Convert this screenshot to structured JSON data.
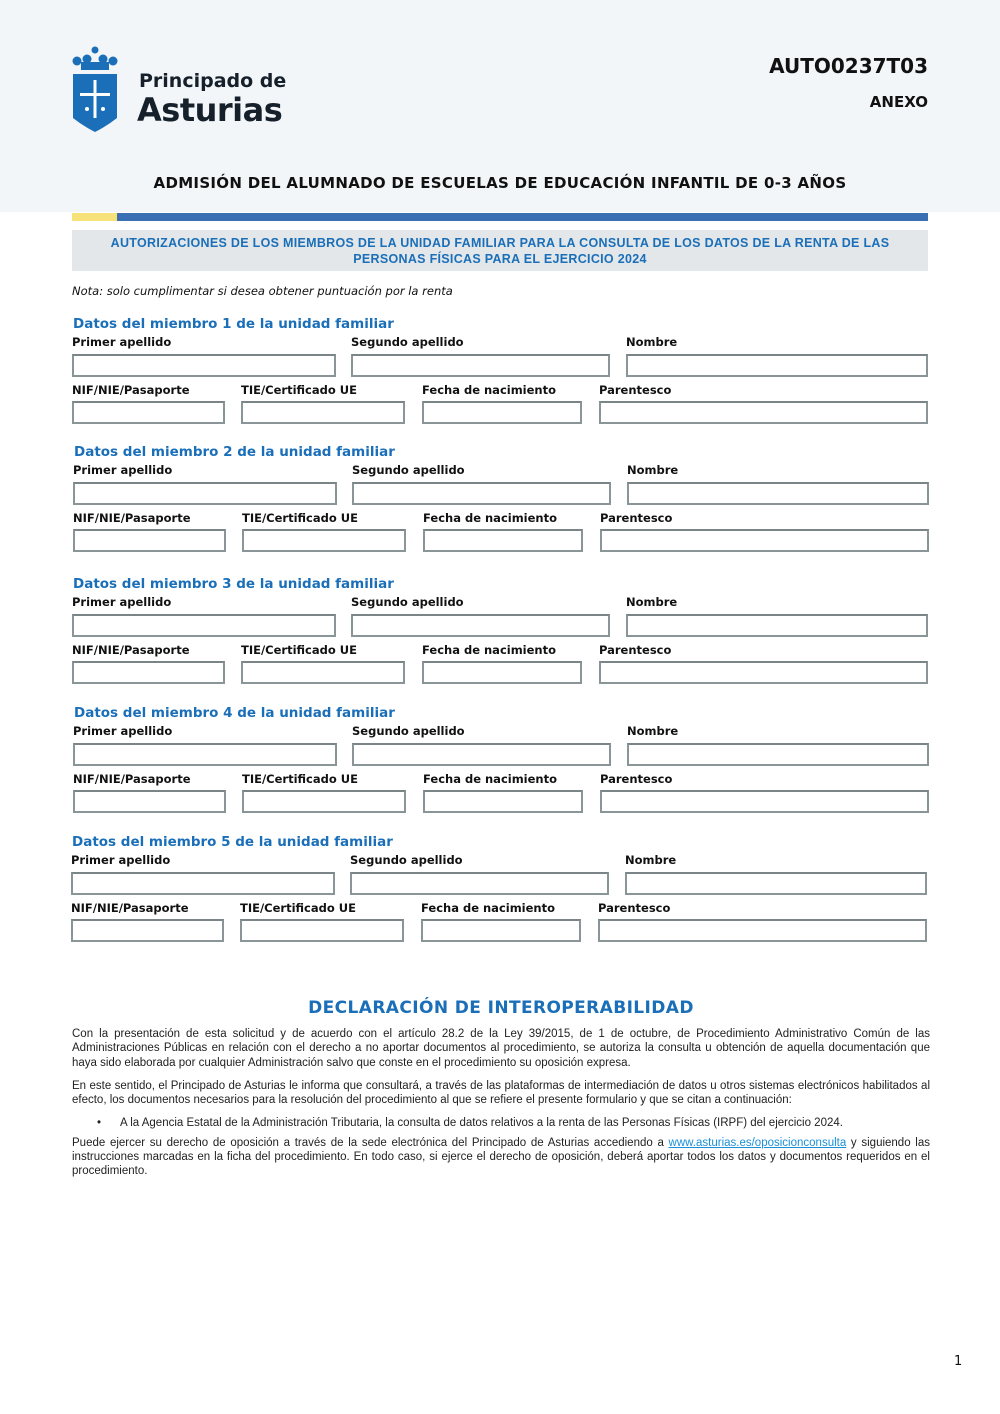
{
  "header": {
    "brand_line1": "Principado de",
    "brand_line2": "Asturias",
    "code": "AUTO0237T03",
    "annex": "ANEXO",
    "title": "ADMISIÓN DEL ALUMNADO DE ESCUELAS DE EDUCACIÓN INFANTIL DE 0-3 AÑOS",
    "colors": {
      "blue": "#1a6fb8",
      "bar": "#3a70b3",
      "yellow": "#f7e27a"
    }
  },
  "section": {
    "title_line1": "AUTORIZACIONES DE LOS MIEMBROS DE LA UNIDAD FAMILIAR PARA LA CONSULTA DE LOS DATOS DE LA RENTA DE LAS",
    "title_line2": "PERSONAS FÍSICAS PARA EL EJERCICIO 2024",
    "note": "Nota: solo cumplimentar si desea obtener puntuación por la renta"
  },
  "fields": {
    "primer_apellido": "Primer apellido",
    "segundo_apellido": "Segundo apellido",
    "nombre": "Nombre",
    "nif": "NIF/NIE/Pasaporte",
    "tie": "TIE/Certificado UE",
    "fecha": "Fecha de nacimiento",
    "parentesco": "Parentesco"
  },
  "members": [
    {
      "title": "Datos del miembro 1 de la unidad familiar",
      "primer_apellido": "",
      "segundo_apellido": "",
      "nombre": "",
      "nif": "",
      "tie": "",
      "fecha": "",
      "parentesco": ""
    },
    {
      "title": "Datos del miembro 2 de la unidad familiar",
      "primer_apellido": "",
      "segundo_apellido": "",
      "nombre": "",
      "nif": "",
      "tie": "",
      "fecha": "",
      "parentesco": ""
    },
    {
      "title": "Datos del miembro 3 de la unidad familiar",
      "primer_apellido": "",
      "segundo_apellido": "",
      "nombre": "",
      "nif": "",
      "tie": "",
      "fecha": "",
      "parentesco": ""
    },
    {
      "title": "Datos del miembro 4 de la unidad familiar",
      "primer_apellido": "",
      "segundo_apellido": "",
      "nombre": "",
      "nif": "",
      "tie": "",
      "fecha": "",
      "parentesco": ""
    },
    {
      "title": "Datos del miembro 5 de la unidad familiar",
      "primer_apellido": "",
      "segundo_apellido": "",
      "nombre": "",
      "nif": "",
      "tie": "",
      "fecha": "",
      "parentesco": ""
    }
  ],
  "declaration": {
    "title": "DECLARACIÓN DE INTEROPERABILIDAD",
    "p1": "Con la presentación de esta solicitud y de acuerdo con el artículo 28.2 de la Ley 39/2015, de 1 de octubre, de Procedimiento Administrativo Común de las Administraciones Públicas en relación con el derecho a no aportar documentos al procedimiento, se autoriza la consulta u obtención de aquella documentación que haya sido elaborada por cualquier Administración salvo que conste en el procedimiento su oposición expresa.",
    "p2": "En este sentido, el Principado de Asturias le informa que consultará, a través de las plataformas de intermediación de datos u otros sistemas electrónicos habilitados al efecto, los documentos necesarios para la resolución del procedimiento al que se refiere el presente formulario y que se citan a continuación:",
    "bullet": "A la Agencia Estatal de la Administración Tributaria, la consulta de datos relativos a la renta de las Personas Físicas (IRPF) del ejercicio 2024.",
    "p3_before": "Puede ejercer su derecho de oposición a través de la sede electrónica del Principado de Asturias accediendo a ",
    "p3_link": "www.asturias.es/oposicionconsulta",
    "p3_after": " y siguiendo las instrucciones marcadas en la ficha del procedimiento. En todo caso, si ejerce el derecho de oposición, deberá aportar todos los datos y documentos requeridos en el procedimiento."
  },
  "page_number": "1"
}
